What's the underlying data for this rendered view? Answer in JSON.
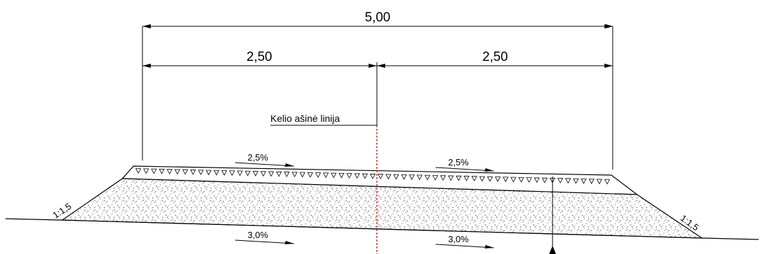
{
  "dimensions": {
    "total_width": "5,00",
    "left_half": "2,50",
    "right_half": "2,50"
  },
  "centerline_label": "Kelio ašinė linija",
  "top_slopes": {
    "left": "2,5%",
    "right": "2,5%"
  },
  "bottom_slopes": {
    "left": "3,0%",
    "right": "3,0%"
  },
  "embankment_slopes": {
    "left": "1:1,5",
    "right": "1:1,5"
  },
  "colors": {
    "line": "#000000",
    "centerline": "#cc0000",
    "background": "#ffffff"
  }
}
